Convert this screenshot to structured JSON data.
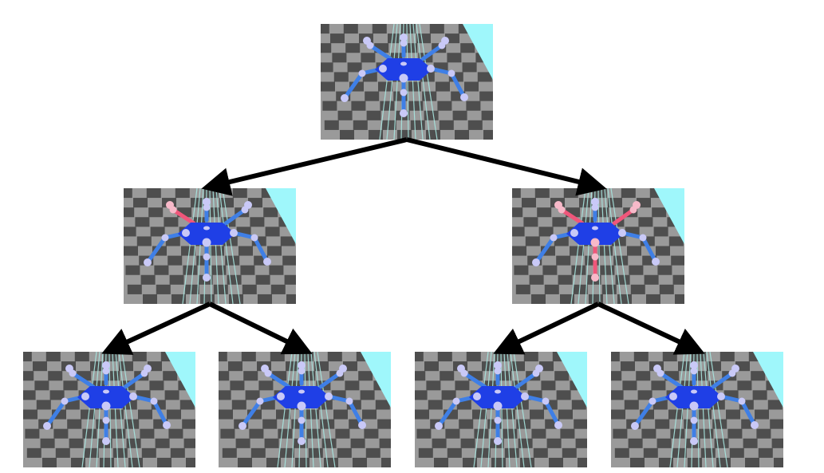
{
  "colors": {
    "background": "#ffffff",
    "floor_light": "#9a9a9a",
    "floor_dark": "#4e4e4e",
    "floor_stripe": "#a8e6e0",
    "sky_cyan": "#9ff7fb",
    "body": "#1f3fe6",
    "leg_normal": "#3f7fe6",
    "joint_normal": "#c9c9f7",
    "leg_damaged": "#f0567a",
    "joint_damaged": "#f7b9c9",
    "arrow": "#000000"
  },
  "tree": {
    "nodes": [
      {
        "id": "root",
        "level": 0,
        "damaged_legs": []
      },
      {
        "id": "left",
        "level": 1,
        "damaged_legs": [
          "front-left"
        ]
      },
      {
        "id": "right",
        "level": 1,
        "damaged_legs": [
          "front-left",
          "front-right",
          "middle"
        ]
      },
      {
        "id": "left-left",
        "level": 2,
        "damaged_legs": []
      },
      {
        "id": "left-right",
        "level": 2,
        "damaged_legs": []
      },
      {
        "id": "right-left",
        "level": 2,
        "damaged_legs": []
      },
      {
        "id": "right-right",
        "level": 2,
        "damaged_legs": []
      }
    ],
    "edges": [
      [
        "root",
        "left"
      ],
      [
        "root",
        "right"
      ],
      [
        "left",
        "left-left"
      ],
      [
        "left",
        "left-right"
      ],
      [
        "right",
        "right-left"
      ],
      [
        "right",
        "right-right"
      ]
    ]
  }
}
